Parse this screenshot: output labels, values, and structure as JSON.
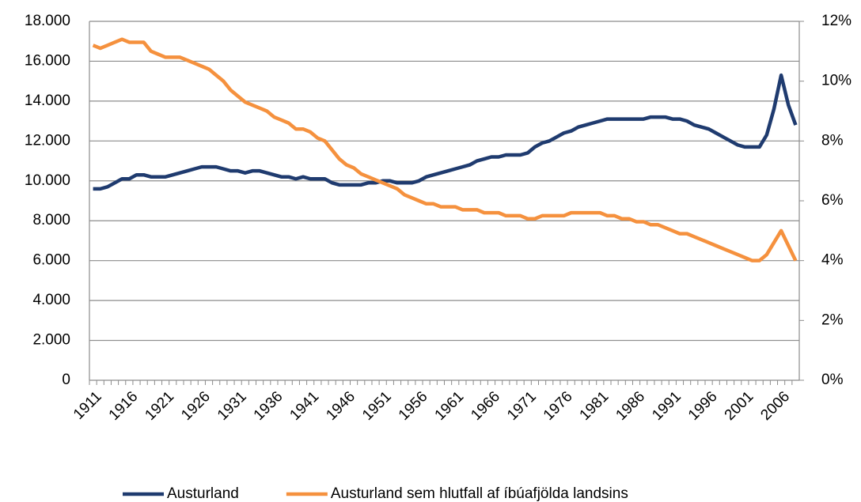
{
  "chart_data": {
    "type": "line",
    "categories": [
      "1911",
      null,
      null,
      null,
      null,
      "1916",
      null,
      null,
      null,
      null,
      "1921",
      null,
      null,
      null,
      null,
      "1926",
      null,
      null,
      null,
      null,
      "1931",
      null,
      null,
      null,
      null,
      "1936",
      null,
      null,
      null,
      null,
      "1941",
      null,
      null,
      null,
      null,
      "1946",
      null,
      null,
      null,
      null,
      "1951",
      null,
      null,
      null,
      null,
      "1956",
      null,
      null,
      null,
      null,
      "1961",
      null,
      null,
      null,
      null,
      "1966",
      null,
      null,
      null,
      null,
      "1971",
      null,
      null,
      null,
      null,
      "1976",
      null,
      null,
      null,
      null,
      "1981",
      null,
      null,
      null,
      null,
      "1986",
      null,
      null,
      null,
      null,
      "1991",
      null,
      null,
      null,
      null,
      "1996",
      null,
      null,
      null,
      null,
      "2001",
      null,
      null,
      null,
      null,
      "2006",
      null,
      null
    ],
    "series": [
      {
        "name": "Austurland",
        "color": "#1f3b6f",
        "values": [
          9600,
          9600,
          9700,
          9900,
          10100,
          10100,
          10300,
          10300,
          10200,
          10200,
          10200,
          10300,
          10400,
          10500,
          10600,
          10700,
          10700,
          10700,
          10600,
          10500,
          10500,
          10400,
          10500,
          10500,
          10400,
          10300,
          10200,
          10200,
          10100,
          10200,
          10100,
          10100,
          10100,
          9900,
          9800,
          9800,
          9800,
          9800,
          9900,
          9900,
          10000,
          10000,
          9900,
          9900,
          9900,
          10000,
          10200,
          10300,
          10400,
          10500,
          10600,
          10700,
          10800,
          11000,
          11100,
          11200,
          11200,
          11300,
          11300,
          11300,
          11400,
          11700,
          11900,
          12000,
          12200,
          12400,
          12500,
          12700,
          12800,
          12900,
          13000,
          13100,
          13100,
          13100,
          13100,
          13100,
          13100,
          13200,
          13200,
          13200,
          13100,
          13100,
          13000,
          12800,
          12700,
          12600,
          12400,
          12200,
          12000,
          11800,
          11700,
          11700,
          11700,
          12300,
          13600,
          15300,
          13800,
          12800
        ]
      },
      {
        "name": "Austurland sem hlutfall af íbúafjölda landsins",
        "color": "#f5913e",
        "axis": "y2",
        "values": [
          11.2,
          11.1,
          11.2,
          11.3,
          11.4,
          11.3,
          11.3,
          11.3,
          11.0,
          10.9,
          10.8,
          10.8,
          10.8,
          10.7,
          10.6,
          10.5,
          10.4,
          10.2,
          10.0,
          9.7,
          9.5,
          9.3,
          9.2,
          9.1,
          9.0,
          8.8,
          8.7,
          8.6,
          8.4,
          8.4,
          8.3,
          8.1,
          8.0,
          7.7,
          7.4,
          7.2,
          7.1,
          6.9,
          6.8,
          6.7,
          6.6,
          6.5,
          6.4,
          6.2,
          6.1,
          6.0,
          5.9,
          5.9,
          5.8,
          5.8,
          5.8,
          5.7,
          5.7,
          5.7,
          5.6,
          5.6,
          5.6,
          5.5,
          5.5,
          5.5,
          5.4,
          5.4,
          5.5,
          5.5,
          5.5,
          5.5,
          5.6,
          5.6,
          5.6,
          5.6,
          5.6,
          5.5,
          5.5,
          5.4,
          5.4,
          5.3,
          5.3,
          5.2,
          5.2,
          5.1,
          5.0,
          4.9,
          4.9,
          4.8,
          4.7,
          4.6,
          4.5,
          4.4,
          4.3,
          4.2,
          4.1,
          4.0,
          4.0,
          4.2,
          4.6,
          5.0,
          4.5,
          4.0
        ]
      }
    ],
    "ylim": [
      0,
      18000
    ],
    "yticks": [
      0,
      {
        "value": 2000,
        "label": "2.000"
      },
      {
        "value": 4000,
        "label": "4.000"
      },
      {
        "value": 6000,
        "label": "6.000"
      },
      {
        "value": 8000,
        "label": "8.000"
      },
      {
        "value": 10000,
        "label": "10.000"
      },
      {
        "value": 12000,
        "label": "12.000"
      },
      {
        "value": 14000,
        "label": "14.000"
      },
      {
        "value": 16000,
        "label": "16.000"
      },
      {
        "value": 18000,
        "label": "18.000"
      }
    ],
    "y2lim": [
      0,
      12
    ],
    "y2ticks": [
      {
        "value": 0,
        "label": "0%"
      },
      {
        "value": 2,
        "label": "2%"
      },
      {
        "value": 4,
        "label": "4%"
      },
      {
        "value": 6,
        "label": "6%"
      },
      {
        "value": 8,
        "label": "8%"
      },
      {
        "value": 10,
        "label": "10%"
      },
      {
        "value": 12,
        "label": "12%"
      }
    ],
    "grid": true,
    "legend": "bottom"
  }
}
